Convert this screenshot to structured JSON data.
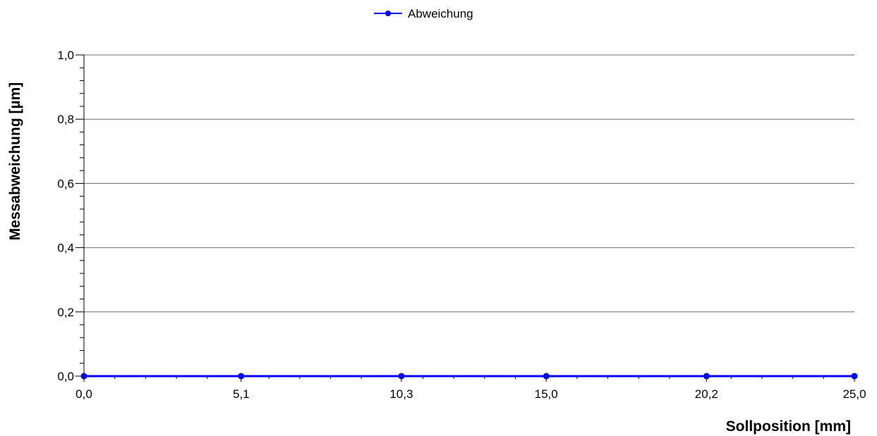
{
  "chart_data": {
    "type": "line",
    "xlabel": "Sollposition [mm]",
    "ylabel": "Messabweichung [µm]",
    "ylim": [
      0,
      1
    ],
    "x_ticks": [
      "0,0",
      "5,1",
      "10,3",
      "15,0",
      "20,2",
      "25,0"
    ],
    "y_ticks": [
      "0,0",
      "0,2",
      "0,4",
      "0,6",
      "0,8",
      "1,0"
    ],
    "y_tick_values": [
      0,
      0.2,
      0.4,
      0.6,
      0.8,
      1.0
    ],
    "grid": "horizontal",
    "legend_position": "top-center",
    "series": [
      {
        "name": "Abweichung",
        "color": "#0000ff",
        "marker": "circle",
        "x": [
          0.0,
          5.1,
          10.3,
          15.0,
          20.2,
          25.0
        ],
        "values": [
          0,
          0,
          0,
          0,
          0,
          0
        ]
      }
    ]
  }
}
